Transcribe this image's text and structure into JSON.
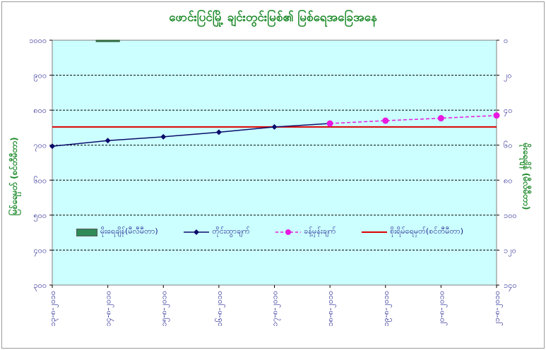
{
  "chart_data": {
    "type": "line",
    "title": "ဖောင်းပြင်မြို့ ချင်းတွင်းမြစ်၏ မြစ်ရေအခြေအနေ",
    "ylabel_left": "မြစ်ရေမှတ် (စင်တီမီတာ)",
    "ylabel_right": "မိုးရေချိန် (မီလီမီတာ)",
    "left_axis": {
      "ticks": [
        300,
        400,
        500,
        600,
        700,
        800,
        900,
        1000
      ],
      "tick_labels": [
        "၃၀၀",
        "၄၀၀",
        "၅၀၀",
        "၆၀၀",
        "၇၀၀",
        "၈၀၀",
        "၉၀၀",
        "၁၀၀၀"
      ],
      "ylim": [
        300,
        1000
      ]
    },
    "right_axis": {
      "ticks": [
        0,
        20,
        40,
        60,
        80,
        100,
        120,
        140
      ],
      "tick_labels": [
        "၀",
        "၂၀",
        "၄၀",
        "၆၀",
        "၈၀",
        "၁၀၀",
        "၁၂၀",
        "၁၄၀"
      ],
      "ylim": [
        0,
        140
      ],
      "inverted": true
    },
    "categories": [
      "၁၃-၈-၂၀၁၀",
      "၁၄-၈-၂၀၁၀",
      "၁၅-၈-၂၀၁၀",
      "၁၆-၈-၂၀၁၀",
      "၁၇-၈-၂၀၁၀",
      "၁၈-၈-၂၀၁၀",
      "၁၉-၈-၂၀၁၀",
      "၂၀-၈-၂၀၁၀",
      "၂၁-၈-၂၀၁၀"
    ],
    "series": [
      {
        "name": "တိုင်းထွာချက်",
        "kind": "line",
        "axis": "left",
        "color": "#0b0b6b",
        "values": [
          697,
          713,
          724,
          737,
          752,
          762,
          null,
          null,
          null
        ]
      },
      {
        "name": "ခန့်မှန်းချက်",
        "kind": "line-dashed",
        "axis": "left",
        "color": "#e818e0",
        "values": [
          null,
          null,
          null,
          null,
          null,
          762,
          770,
          777,
          785
        ]
      },
      {
        "name": "မိုးရေချိန်(မီလီမီတာ)",
        "kind": "bar",
        "axis": "right",
        "color": "#2e8b57",
        "values": [
          null,
          0.5,
          null,
          null,
          null,
          null,
          null,
          null,
          null
        ]
      }
    ],
    "reference_line": {
      "name": "စိုးရိမ်ရေမှတ်(စင်တီမီတာ)",
      "value": 752,
      "color": "#dd0000"
    },
    "grid": "horizontal-dashed",
    "plot_background": "#ccffff",
    "legend_position": "inside-bottom"
  }
}
